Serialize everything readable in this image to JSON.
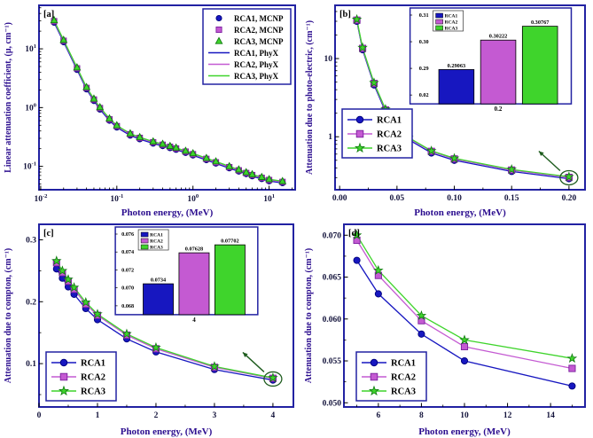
{
  "figure": {
    "background": "#ffffff"
  },
  "colors": {
    "frame": "#2222a2",
    "axis_label": "#2c0e8f",
    "tick_label": "#14143c",
    "legend_text": "#000000",
    "annotation": "#1e5c1e",
    "rca1": "#1717c0",
    "rca1_edge": "#00007a",
    "rca2": "#c45ad2",
    "rca2_edge": "#7a1f9e",
    "rca3": "#3fd42c",
    "rca3_edge": "#117a11"
  },
  "chart_data": [
    {
      "id": "a",
      "panel_label": "[a]",
      "type": "line",
      "xscale": "log",
      "yscale": "log",
      "xlabel": "Photon energy, (MeV)",
      "ylabel": "Linear attenuation coefficient, (μ, cm⁻¹)",
      "xlim": [
        0.0095,
        22
      ],
      "ylim": [
        0.04,
        55
      ],
      "log_label_style": "power",
      "x": [
        0.015,
        0.02,
        0.03,
        0.04,
        0.05,
        0.06,
        0.08,
        0.1,
        0.15,
        0.2,
        0.3,
        0.4,
        0.5,
        0.6,
        0.8,
        1,
        1.5,
        2,
        3,
        4,
        5,
        6,
        8,
        10,
        15
      ],
      "series": [
        {
          "name": "RCA1, MCNP",
          "style": "marker",
          "marker": "circle",
          "color": "#1717c0",
          "edge": "#00007a",
          "values": [
            28,
            13,
            4.4,
            2.05,
            1.3,
            0.93,
            0.6,
            0.46,
            0.335,
            0.29,
            0.245,
            0.222,
            0.205,
            0.192,
            0.17,
            0.154,
            0.128,
            0.112,
            0.093,
            0.082,
            0.074,
            0.068,
            0.061,
            0.056,
            0.052
          ]
        },
        {
          "name": "RCA2, MCNP",
          "style": "marker",
          "marker": "square",
          "color": "#c45ad2",
          "edge": "#7a1f9e",
          "values": [
            29.5,
            13.7,
            4.65,
            2.16,
            1.37,
            0.98,
            0.63,
            0.483,
            0.352,
            0.305,
            0.257,
            0.233,
            0.215,
            0.201,
            0.178,
            0.161,
            0.134,
            0.117,
            0.097,
            0.0855,
            0.077,
            0.071,
            0.0637,
            0.0585,
            0.0543
          ]
        },
        {
          "name": "RCA3, MCNP",
          "style": "marker",
          "marker": "triangle",
          "color": "#3fd42c",
          "edge": "#117a11",
          "values": [
            30.5,
            14.1,
            4.8,
            2.22,
            1.41,
            1.01,
            0.65,
            0.497,
            0.362,
            0.313,
            0.264,
            0.24,
            0.221,
            0.207,
            0.183,
            0.166,
            0.138,
            0.121,
            0.1,
            0.088,
            0.079,
            0.073,
            0.0655,
            0.0602,
            0.0558
          ]
        },
        {
          "name": "RCA1, PhyX",
          "style": "line",
          "marker": "none",
          "color": "#1717c0",
          "edge": "#00007a",
          "values": [
            28,
            13,
            4.4,
            2.05,
            1.3,
            0.93,
            0.6,
            0.46,
            0.335,
            0.29,
            0.245,
            0.222,
            0.205,
            0.192,
            0.17,
            0.154,
            0.128,
            0.112,
            0.093,
            0.082,
            0.074,
            0.068,
            0.061,
            0.056,
            0.052
          ]
        },
        {
          "name": "RCA2, PhyX",
          "style": "line",
          "marker": "none",
          "color": "#c45ad2",
          "edge": "#7a1f9e",
          "values": [
            29.5,
            13.7,
            4.65,
            2.16,
            1.37,
            0.98,
            0.63,
            0.483,
            0.352,
            0.305,
            0.257,
            0.233,
            0.215,
            0.201,
            0.178,
            0.161,
            0.134,
            0.117,
            0.097,
            0.0855,
            0.077,
            0.071,
            0.0637,
            0.0585,
            0.0543
          ]
        },
        {
          "name": "RCA3, PhyX",
          "style": "line",
          "marker": "none",
          "color": "#3fd42c",
          "edge": "#117a11",
          "values": [
            30.5,
            14.1,
            4.8,
            2.22,
            1.41,
            1.01,
            0.65,
            0.497,
            0.362,
            0.313,
            0.264,
            0.24,
            0.221,
            0.207,
            0.183,
            0.166,
            0.138,
            0.121,
            0.1,
            0.088,
            0.079,
            0.073,
            0.0655,
            0.0602,
            0.0558
          ]
        }
      ],
      "legend": {
        "position": "top-right",
        "entries": [
          "RCA1, MCNP",
          "RCA2, MCNP",
          "RCA3, MCNP",
          "RCA1, PhyX",
          "RCA2, PhyX",
          "RCA3, PhyX"
        ]
      }
    },
    {
      "id": "b",
      "panel_label": "[b]",
      "type": "line",
      "xscale": "linear",
      "yscale": "log",
      "xlabel": "Photon energy, (MeV)",
      "ylabel": "Attenuation due to photo-electric, (cm⁻¹)",
      "xlim": [
        -0.004,
        0.214
      ],
      "ylim": [
        0.21,
        48
      ],
      "log_label_style": "plain",
      "xticks": [
        0,
        0.05,
        0.1,
        0.15,
        0.2
      ],
      "xtick_labels": [
        "0.00",
        "0.05",
        "0.10",
        "0.15",
        "0.20"
      ],
      "x": [
        0.015,
        0.02,
        0.03,
        0.04,
        0.05,
        0.06,
        0.08,
        0.1,
        0.15,
        0.2
      ],
      "series": [
        {
          "name": "RCA1",
          "style": "both",
          "marker": "circle",
          "color": "#1717c0",
          "edge": "#00007a",
          "values": [
            30,
            13,
            4.6,
            2.1,
            1.3,
            0.92,
            0.62,
            0.5,
            0.36,
            0.29063
          ]
        },
        {
          "name": "RCA2",
          "style": "both",
          "marker": "square",
          "color": "#c45ad2",
          "edge": "#7a1f9e",
          "values": [
            31,
            13.5,
            4.8,
            2.2,
            1.36,
            0.96,
            0.65,
            0.52,
            0.375,
            0.30222
          ]
        },
        {
          "name": "RCA3",
          "style": "both",
          "marker": "star",
          "color": "#3fd42c",
          "edge": "#117a11",
          "values": [
            31.7,
            13.8,
            4.9,
            2.25,
            1.39,
            0.98,
            0.66,
            0.53,
            0.382,
            0.30767
          ]
        }
      ],
      "legend": {
        "position": "mid-left",
        "entries": [
          "RCA1",
          "RCA2",
          "RCA3"
        ]
      },
      "inset": {
        "x_label": "0.2",
        "ytick_labels": [
          "0.31",
          "0.30",
          "0.29",
          "0.02"
        ],
        "legend": [
          "RCA1",
          "RCA2",
          "RCA3"
        ],
        "bars": [
          {
            "name": "RCA1",
            "value": 0.29063,
            "label": "0.29063",
            "color": "#1717c0"
          },
          {
            "name": "RCA2",
            "value": 0.30222,
            "label": "0.30222",
            "color": "#c45ad2"
          },
          {
            "name": "RCA3",
            "value": 0.30767,
            "label": "0.30767",
            "color": "#3fd42c"
          }
        ]
      },
      "annotation": {
        "circle_last_point": true,
        "arrow_to_inset": true
      }
    },
    {
      "id": "c",
      "panel_label": "[c]",
      "type": "line",
      "xscale": "linear",
      "yscale": "linear",
      "xlabel": "Photon energy, (MeV)",
      "ylabel": "Attenuation due to compton, (cm⁻¹)",
      "xlim": [
        0,
        4.35
      ],
      "ylim": [
        0.03,
        0.325
      ],
      "xticks": [
        0,
        1,
        2,
        3,
        4
      ],
      "xtick_labels": [
        "0",
        "1",
        "2",
        "3",
        "4"
      ],
      "yticks": [
        0.1,
        0.2,
        0.3
      ],
      "ytick_labels": [
        "0.1",
        "0.2",
        "0.3"
      ],
      "x": [
        0.3,
        0.4,
        0.5,
        0.6,
        0.8,
        1,
        1.5,
        2,
        3,
        4
      ],
      "series": [
        {
          "name": "RCA1",
          "style": "both",
          "marker": "circle",
          "color": "#1717c0",
          "edge": "#00007a",
          "values": [
            0.253,
            0.238,
            0.224,
            0.212,
            0.189,
            0.171,
            0.14,
            0.119,
            0.0905,
            0.0734
          ]
        },
        {
          "name": "RCA2",
          "style": "both",
          "marker": "square",
          "color": "#c45ad2",
          "edge": "#7a1f9e",
          "values": [
            0.263,
            0.247,
            0.233,
            0.22,
            0.196,
            0.178,
            0.146,
            0.124,
            0.094,
            0.07628
          ]
        },
        {
          "name": "RCA3",
          "style": "both",
          "marker": "star",
          "color": "#3fd42c",
          "edge": "#117a11",
          "values": [
            0.266,
            0.25,
            0.236,
            0.223,
            0.199,
            0.18,
            0.148,
            0.126,
            0.0955,
            0.07702
          ]
        }
      ],
      "legend": {
        "position": "bottom-left",
        "entries": [
          "RCA1",
          "RCA2",
          "RCA3"
        ]
      },
      "inset": {
        "x_label": "4",
        "ytick_labels": [
          "0.076",
          "0.074",
          "0.072",
          "0.070",
          "0.068"
        ],
        "legend": [
          "RCA1",
          "RCA2",
          "RCA3"
        ],
        "bars": [
          {
            "name": "RCA1",
            "value": 0.0734,
            "label": "0.0734",
            "color": "#1717c0"
          },
          {
            "name": "RCA2",
            "value": 0.07628,
            "label": "0.07628",
            "color": "#c45ad2"
          },
          {
            "name": "RCA3",
            "value": 0.07702,
            "label": "0.07702",
            "color": "#3fd42c"
          }
        ]
      },
      "annotation": {
        "circle_last_point": true,
        "arrow_to_inset": true
      }
    },
    {
      "id": "d",
      "panel_label": "[d]",
      "type": "line",
      "xscale": "linear",
      "yscale": "linear",
      "xlabel": "Photon energy, (MeV)",
      "ylabel": "Attenuation due to compton, (cm⁻¹)",
      "xlim": [
        4.4,
        15.6
      ],
      "ylim": [
        0.0495,
        0.0713
      ],
      "xticks": [
        6,
        8,
        10,
        12,
        14
      ],
      "xtick_labels": [
        "6",
        "8",
        "10",
        "12",
        "14"
      ],
      "yticks": [
        0.05,
        0.055,
        0.06,
        0.065,
        0.07
      ],
      "ytick_labels": [
        "0.050",
        "0.055",
        "0.060",
        "0.065",
        "0.070"
      ],
      "x": [
        5,
        6,
        8,
        10,
        15
      ],
      "series": [
        {
          "name": "RCA1",
          "style": "both",
          "marker": "circle",
          "color": "#1717c0",
          "edge": "#00007a",
          "values": [
            0.067,
            0.063,
            0.0582,
            0.055,
            0.052
          ]
        },
        {
          "name": "RCA2",
          "style": "both",
          "marker": "square",
          "color": "#c45ad2",
          "edge": "#7a1f9e",
          "values": [
            0.0694,
            0.0652,
            0.0598,
            0.0567,
            0.0541
          ]
        },
        {
          "name": "RCA3",
          "style": "both",
          "marker": "star",
          "color": "#3fd42c",
          "edge": "#117a11",
          "values": [
            0.07,
            0.0658,
            0.0604,
            0.0575,
            0.0553
          ]
        }
      ],
      "legend": {
        "position": "bottom-left",
        "entries": [
          "RCA1",
          "RCA2",
          "RCA3"
        ]
      }
    }
  ]
}
